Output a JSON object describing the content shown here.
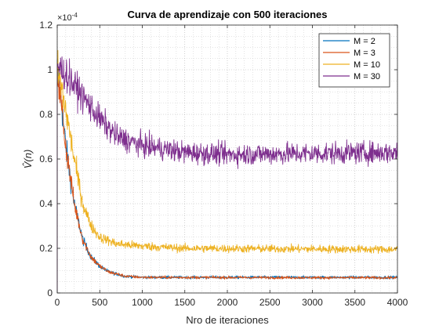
{
  "chart_data": {
    "type": "line",
    "title": "Curva de aprendizaje con 500 iteraciones",
    "xlabel": "Nro de iteraciones",
    "ylabel": "V̂(n)",
    "y_exponent_label": "×10",
    "y_exponent_power": "-4",
    "xlim": [
      0,
      4000
    ],
    "ylim": [
      0,
      1.2
    ],
    "x_ticks": [
      "0",
      "500",
      "1000",
      "1500",
      "2000",
      "2500",
      "3000",
      "3500",
      "4000"
    ],
    "y_ticks": [
      "0",
      "0.2",
      "0.4",
      "0.6",
      "0.8",
      "1",
      "1.2"
    ],
    "grid": true,
    "minor_grid": true,
    "legend_position": "top-right",
    "series": [
      {
        "name": "M = 2",
        "color": "#0072BD",
        "keypoints": [
          [
            0,
            1.0
          ],
          [
            50,
            0.85
          ],
          [
            100,
            0.66
          ],
          [
            200,
            0.4
          ],
          [
            300,
            0.24
          ],
          [
            400,
            0.16
          ],
          [
            500,
            0.12
          ],
          [
            600,
            0.095
          ],
          [
            800,
            0.075
          ],
          [
            1000,
            0.07
          ],
          [
            4000,
            0.07
          ]
        ]
      },
      {
        "name": "M = 3",
        "color": "#D95319",
        "keypoints": [
          [
            0,
            1.0
          ],
          [
            50,
            0.84
          ],
          [
            100,
            0.66
          ],
          [
            200,
            0.4
          ],
          [
            300,
            0.24
          ],
          [
            400,
            0.16
          ],
          [
            500,
            0.12
          ],
          [
            600,
            0.095
          ],
          [
            800,
            0.075
          ],
          [
            1000,
            0.07
          ],
          [
            4000,
            0.068
          ]
        ]
      },
      {
        "name": "M = 10",
        "color": "#EDB120",
        "keypoints": [
          [
            0,
            1.0
          ],
          [
            50,
            0.92
          ],
          [
            100,
            0.82
          ],
          [
            200,
            0.6
          ],
          [
            300,
            0.4
          ],
          [
            400,
            0.3
          ],
          [
            500,
            0.25
          ],
          [
            700,
            0.22
          ],
          [
            1000,
            0.21
          ],
          [
            1500,
            0.2
          ],
          [
            4000,
            0.195
          ]
        ]
      },
      {
        "name": "M = 30",
        "color": "#7E2F8E",
        "keypoints": [
          [
            0,
            1.02
          ],
          [
            100,
            0.98
          ],
          [
            300,
            0.88
          ],
          [
            500,
            0.78
          ],
          [
            700,
            0.7
          ],
          [
            1000,
            0.66
          ],
          [
            1500,
            0.63
          ],
          [
            2000,
            0.62
          ],
          [
            4000,
            0.63
          ]
        ]
      }
    ]
  }
}
